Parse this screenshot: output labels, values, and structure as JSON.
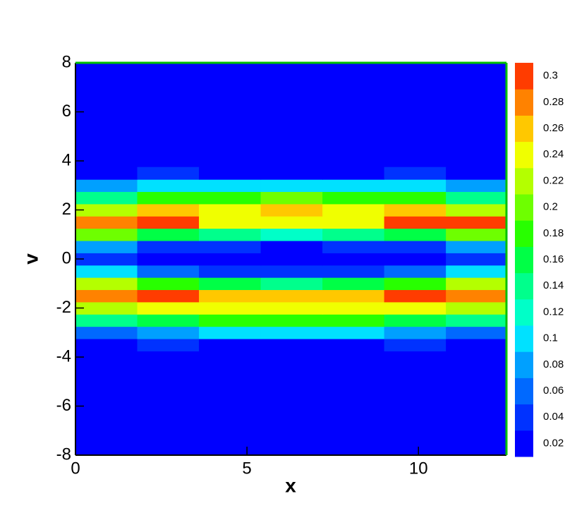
{
  "chart_data": {
    "type": "contour",
    "x_label": "x",
    "y_label": "v",
    "xlim": [
      0,
      12.566
    ],
    "ylim": [
      -8,
      8
    ],
    "xticks": [
      0,
      5,
      10
    ],
    "yticks": [
      -8,
      -6,
      -4,
      -2,
      0,
      2,
      4,
      6,
      8
    ],
    "x": [
      0.9,
      2.7,
      4.5,
      6.3,
      8.1,
      9.9,
      11.7
    ],
    "y": [
      -3.5,
      -3,
      -2.5,
      -2,
      -1.5,
      -1,
      -0.5,
      0,
      0.5,
      1,
      1.5,
      2,
      2.5,
      3,
      3.5
    ],
    "z": [
      [
        0.03,
        0.04,
        0.03,
        0.03,
        0.03,
        0.04,
        0.03
      ],
      [
        0.07,
        0.09,
        0.1,
        0.1,
        0.1,
        0.09,
        0.07
      ],
      [
        0.14,
        0.16,
        0.18,
        0.18,
        0.18,
        0.16,
        0.14
      ],
      [
        0.22,
        0.24,
        0.24,
        0.25,
        0.24,
        0.24,
        0.22
      ],
      [
        0.28,
        0.3,
        0.27,
        0.26,
        0.27,
        0.3,
        0.28
      ],
      [
        0.23,
        0.19,
        0.16,
        0.15,
        0.16,
        0.19,
        0.23
      ],
      [
        0.1,
        0.06,
        0.05,
        0.04,
        0.05,
        0.06,
        0.1
      ],
      [
        0.05,
        0.02,
        0.01,
        0.01,
        0.01,
        0.02,
        0.05
      ],
      [
        0.08,
        0.05,
        0.04,
        0.03,
        0.04,
        0.05,
        0.08
      ],
      [
        0.21,
        0.17,
        0.14,
        0.13,
        0.14,
        0.17,
        0.21
      ],
      [
        0.29,
        0.3,
        0.25,
        0.24,
        0.25,
        0.3,
        0.31
      ],
      [
        0.23,
        0.26,
        0.25,
        0.26,
        0.25,
        0.26,
        0.23
      ],
      [
        0.15,
        0.18,
        0.19,
        0.2,
        0.19,
        0.18,
        0.15
      ],
      [
        0.09,
        0.11,
        0.1,
        0.1,
        0.1,
        0.11,
        0.09
      ],
      [
        0.03,
        0.05,
        0.03,
        0.03,
        0.03,
        0.05,
        0.03
      ]
    ],
    "levels": [
      0.02,
      0.04,
      0.06,
      0.08,
      0.1,
      0.12,
      0.14,
      0.16,
      0.18,
      0.2,
      0.22,
      0.24,
      0.26,
      0.28,
      0.3
    ],
    "level_colors": [
      "#0000ff",
      "#0032ff",
      "#0069ff",
      "#00a0ff",
      "#00e1ff",
      "#00ffc8",
      "#00ff8c",
      "#00ff46",
      "#28ff00",
      "#6eff00",
      "#b4ff00",
      "#f0ff00",
      "#ffc800",
      "#ff8200",
      "#ff3c00"
    ]
  }
}
